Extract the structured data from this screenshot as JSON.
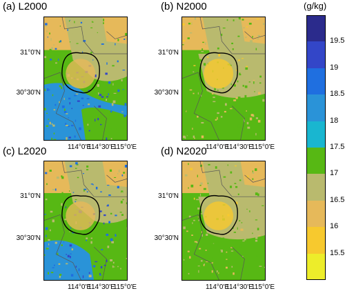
{
  "panels": [
    {
      "id": "L2000",
      "title": "(a) L2000",
      "scheme": "L2000"
    },
    {
      "id": "N2000",
      "title": "(b) N2000",
      "scheme": "N2000"
    },
    {
      "id": "L2020",
      "title": "(c) L2020",
      "scheme": "L2020"
    },
    {
      "id": "N2020",
      "title": "(d) N2020",
      "scheme": "N2020"
    }
  ],
  "lat_labels": [
    "31°0'N",
    "30°30'N"
  ],
  "lon_labels": [
    "114°0'E",
    "114°30'E",
    "115°0'E"
  ],
  "legend": {
    "unit": "(g/kg)",
    "ticks": [
      "19.5",
      "19",
      "18.5",
      "18",
      "17.5",
      "17",
      "16.5",
      "16",
      "15.5"
    ],
    "colors": [
      "#2b2b8c",
      "#3346c8",
      "#1f6fe0",
      "#2a93d8",
      "#19b6d0",
      "#57b814",
      "#b9ba6e",
      "#e6b95a",
      "#f7c92e",
      "#eded2a"
    ]
  }
}
